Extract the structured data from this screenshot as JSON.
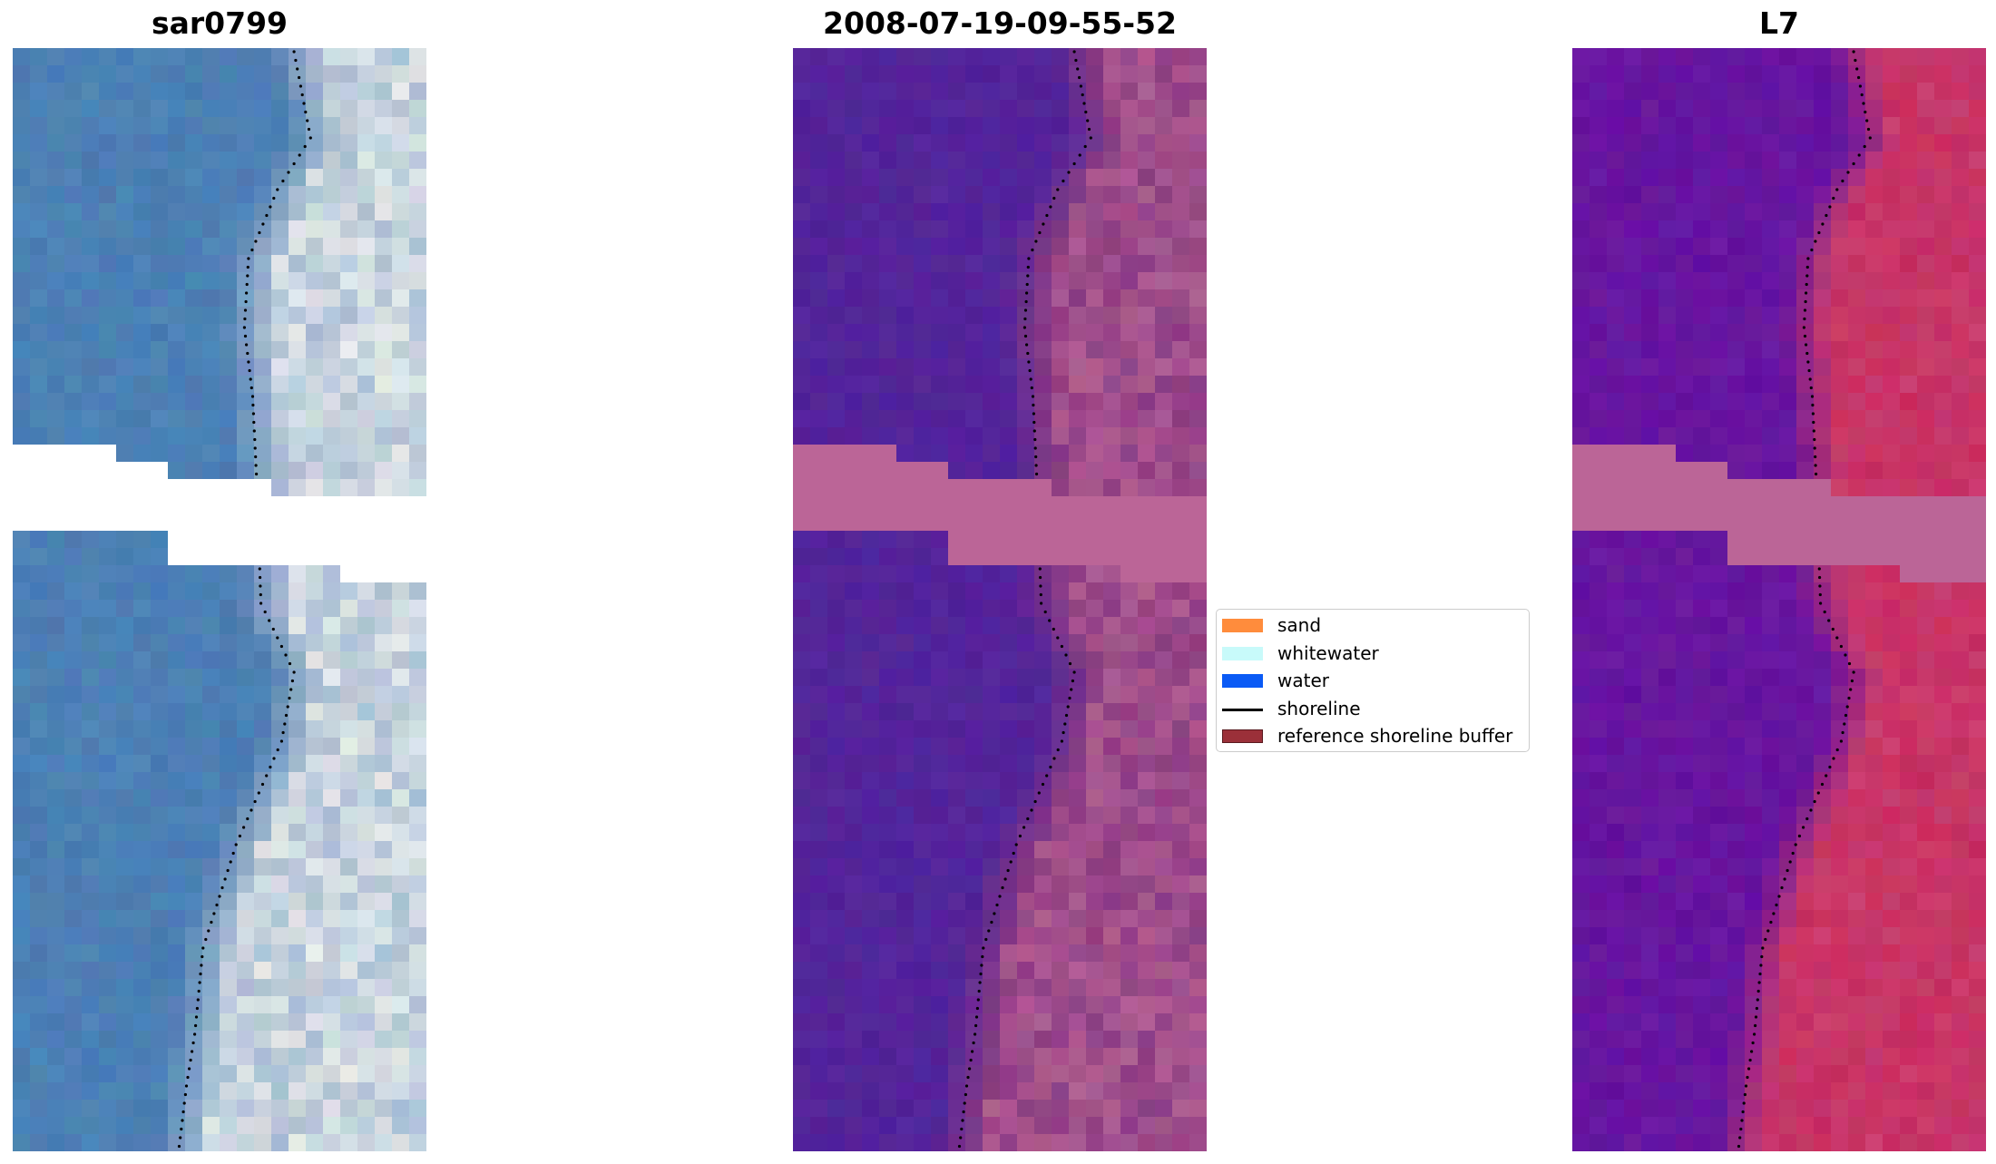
{
  "panels": [
    {
      "title": "sar0799",
      "view": "rgb"
    },
    {
      "title": "2008-07-19-09-55-52",
      "view": "classified"
    },
    {
      "title": "L7",
      "view": "index"
    }
  ],
  "legend": {
    "items": [
      {
        "label": "sand",
        "kind": "patch",
        "color": "#ff8c3c"
      },
      {
        "label": "whitewater",
        "kind": "patch",
        "color": "#c8fafa"
      },
      {
        "label": "water",
        "kind": "patch",
        "color": "#0a5af5"
      },
      {
        "label": "shoreline",
        "kind": "line",
        "color": "#000000"
      },
      {
        "label": "reference shoreline buffer",
        "kind": "patch",
        "color": "#9b3039",
        "edge": "#5a1a1f"
      }
    ]
  },
  "colors": {
    "water_rgb": "#4a7cb2",
    "surf_rgb": "#f2f4f0",
    "water_class": "#53249a",
    "land_class": "#9a4a8c",
    "nodata_class": "#bb6597",
    "water_index": "#6412a0",
    "land_index": "#c82a5c",
    "nodata_index": "#bb6597"
  }
}
